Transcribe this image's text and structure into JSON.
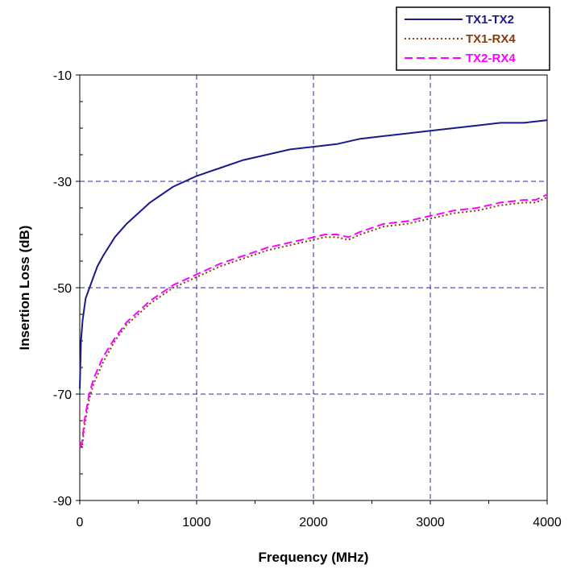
{
  "chart_data": {
    "type": "line",
    "title": "",
    "xlabel": "Frequency (MHz)",
    "ylabel": "Insertion Loss (dB)",
    "xlim": [
      0,
      4000
    ],
    "ylim": [
      -90,
      -10
    ],
    "xticks": [
      0,
      1000,
      2000,
      3000,
      4000
    ],
    "yticks": [
      -10,
      -30,
      -50,
      -70,
      -90
    ],
    "grid": true,
    "legend_position": "top-right",
    "series": [
      {
        "name": "TX1-TX2",
        "color": "#1a1a8c",
        "dash": "solid",
        "x": [
          0,
          10,
          25,
          50,
          100,
          150,
          200,
          300,
          400,
          500,
          600,
          700,
          800,
          1000,
          1200,
          1400,
          1600,
          1800,
          2000,
          2200,
          2400,
          2600,
          2800,
          3000,
          3200,
          3400,
          3600,
          3800,
          4000
        ],
        "y": [
          -69,
          -60,
          -56,
          -52,
          -49,
          -46,
          -44,
          -40.5,
          -38,
          -36,
          -34,
          -32.5,
          -31,
          -29,
          -27.5,
          -26,
          -25,
          -24,
          -23.5,
          -23,
          -22,
          -21.5,
          -21,
          -20.5,
          -20,
          -19.5,
          -19,
          -19,
          -18.5
        ]
      },
      {
        "name": "TX1-RX4",
        "color": "#8b3a0f",
        "dash": "dotted",
        "x": [
          0,
          20,
          40,
          80,
          120,
          200,
          300,
          400,
          500,
          600,
          700,
          800,
          1000,
          1200,
          1400,
          1600,
          1800,
          2000,
          2100,
          2200,
          2300,
          2400,
          2600,
          2800,
          3000,
          3200,
          3400,
          3600,
          3800,
          3900,
          4000
        ],
        "y": [
          -79,
          -80,
          -76,
          -71,
          -68,
          -64,
          -60,
          -57,
          -55,
          -53,
          -51.5,
          -50,
          -48,
          -46,
          -44.5,
          -43,
          -42,
          -41,
          -40.5,
          -40.5,
          -41,
          -40,
          -38.5,
          -38,
          -37,
          -36,
          -35.5,
          -34.5,
          -34,
          -34,
          -33
        ]
      },
      {
        "name": "TX2-RX4",
        "color": "#ff00ff",
        "dash": "dashed",
        "x": [
          0,
          20,
          40,
          80,
          120,
          200,
          300,
          400,
          500,
          600,
          700,
          800,
          1000,
          1200,
          1400,
          1600,
          1800,
          2000,
          2100,
          2200,
          2300,
          2400,
          2600,
          2800,
          3000,
          3200,
          3400,
          3600,
          3800,
          3900,
          4000
        ],
        "y": [
          -80,
          -79,
          -75,
          -70,
          -67,
          -63,
          -59.5,
          -56.5,
          -54.5,
          -52.5,
          -51,
          -49.5,
          -47.5,
          -45.5,
          -44,
          -42.5,
          -41.5,
          -40.5,
          -40,
          -40,
          -40.5,
          -39.5,
          -38,
          -37.5,
          -36.5,
          -35.5,
          -35,
          -34,
          -33.5,
          -33.5,
          -32.5
        ]
      }
    ]
  }
}
